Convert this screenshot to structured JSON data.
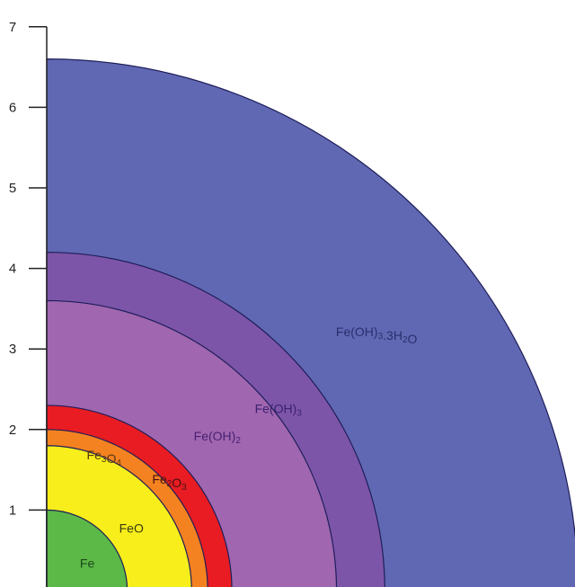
{
  "chart_data": {
    "type": "area",
    "title": "",
    "xlabel": "",
    "ylabel": "",
    "ylim": [
      0,
      7
    ],
    "yticks": [
      1,
      2,
      3,
      4,
      5,
      6,
      7
    ],
    "grid": false,
    "legend": "none",
    "layers": [
      {
        "name": "Fe(OH)3.3H2O",
        "label": "Fe(OH)₃.3H₂O",
        "radius": 6.6,
        "fill": "#6068b3",
        "label_color": "#2a2f6e",
        "label_angle_deg": 38,
        "label_radius": 5.2
      },
      {
        "name": "Fe(OH)3",
        "label": "Fe(OH)₃",
        "radius": 4.2,
        "fill": "#7d55a8",
        "label_color": "#3c2170",
        "label_angle_deg": 38,
        "label_radius": 3.65
      },
      {
        "name": "Fe(OH)2",
        "label": "Fe(OH)₂",
        "radius": 3.6,
        "fill": "#a066b0",
        "label_color": "#4a2172",
        "label_angle_deg": 42,
        "label_radius": 2.85
      },
      {
        "name": "Fe2O3",
        "label": "Fe₂O₃",
        "radius": 2.3,
        "fill": "#e81c22",
        "label_color": "#4a1010",
        "label_angle_deg": 42,
        "label_radius": 2.05
      },
      {
        "name": "Fe3O4",
        "label": "Fe₃O₄",
        "radius": 2.0,
        "fill": "#f58220",
        "label_color": "#5a3a10",
        "label_angle_deg": 67,
        "label_radius": 1.82
      },
      {
        "name": "FeO",
        "label": "FeO",
        "radius": 1.8,
        "fill": "#f7ee1b",
        "label_color": "#3a3a10",
        "label_angle_deg": 36,
        "label_radius": 1.3
      },
      {
        "name": "Fe",
        "label": "Fe",
        "radius": 1.0,
        "fill": "#5cb847",
        "label_color": "#1d4a1a",
        "label_angle_deg": 33,
        "label_radius": 0.6
      }
    ]
  }
}
